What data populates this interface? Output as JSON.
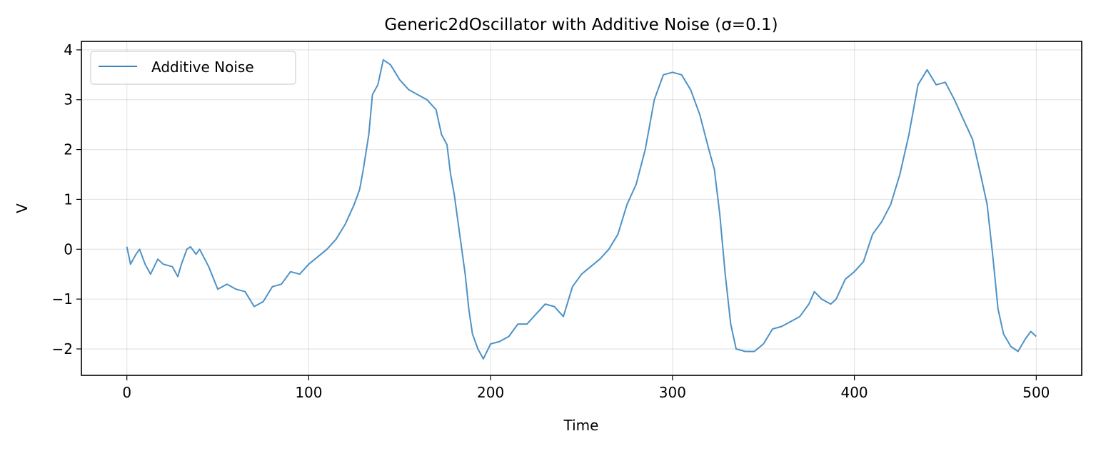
{
  "chart_data": {
    "type": "line",
    "title": "Generic2dOscillator with Additive Noise (σ=0.1)",
    "xlabel": "Time",
    "ylabel": "V",
    "xlim": [
      -25,
      525
    ],
    "ylim": [
      -2.53,
      4.17
    ],
    "xticks": [
      0,
      100,
      200,
      300,
      400,
      500
    ],
    "xtick_labels": [
      "0",
      "100",
      "200",
      "300",
      "400",
      "500"
    ],
    "yticks": [
      -2,
      -1,
      0,
      1,
      2,
      3,
      4
    ],
    "ytick_labels": [
      "−2",
      "−1",
      "0",
      "1",
      "2",
      "3",
      "4"
    ],
    "grid": true,
    "legend": {
      "placement": "top-left",
      "entries": [
        "Additive Noise"
      ]
    },
    "series": [
      {
        "name": "Additive Noise",
        "color": "#3a86c0",
        "x": [
          0,
          2,
          5,
          7,
          10,
          13,
          17,
          20,
          25,
          28,
          30,
          33,
          35,
          38,
          40,
          45,
          50,
          55,
          60,
          65,
          70,
          75,
          80,
          85,
          90,
          95,
          100,
          105,
          110,
          115,
          120,
          125,
          128,
          130,
          133,
          135,
          138,
          141,
          145,
          150,
          155,
          160,
          165,
          170,
          173,
          176,
          178,
          180,
          183,
          186,
          188,
          190,
          193,
          196,
          200,
          205,
          210,
          215,
          220,
          225,
          230,
          235,
          240,
          245,
          250,
          255,
          260,
          265,
          270,
          275,
          280,
          285,
          290,
          295,
          300,
          305,
          310,
          315,
          320,
          323,
          326,
          329,
          332,
          335,
          340,
          345,
          350,
          355,
          360,
          365,
          370,
          375,
          378,
          382,
          387,
          390,
          395,
          400,
          405,
          410,
          415,
          420,
          425,
          430,
          435,
          440,
          445,
          450,
          455,
          460,
          465,
          470,
          473,
          476,
          479,
          482,
          486,
          490,
          494,
          497,
          500
        ],
        "y": [
          0.05,
          -0.3,
          -0.1,
          0.0,
          -0.3,
          -0.5,
          -0.2,
          -0.3,
          -0.35,
          -0.55,
          -0.3,
          0.0,
          0.05,
          -0.1,
          0.0,
          -0.35,
          -0.8,
          -0.7,
          -0.8,
          -0.85,
          -1.15,
          -1.05,
          -0.75,
          -0.7,
          -0.45,
          -0.5,
          -0.3,
          -0.15,
          0.0,
          0.2,
          0.5,
          0.9,
          1.2,
          1.6,
          2.3,
          3.1,
          3.3,
          3.8,
          3.7,
          3.4,
          3.2,
          3.1,
          3.0,
          2.8,
          2.3,
          2.1,
          1.5,
          1.1,
          0.3,
          -0.5,
          -1.2,
          -1.7,
          -2.0,
          -2.2,
          -1.9,
          -1.85,
          -1.75,
          -1.5,
          -1.5,
          -1.3,
          -1.1,
          -1.15,
          -1.35,
          -0.75,
          -0.5,
          -0.35,
          -0.2,
          0.0,
          0.3,
          0.9,
          1.3,
          2.0,
          3.0,
          3.5,
          3.55,
          3.5,
          3.2,
          2.7,
          2.0,
          1.6,
          0.7,
          -0.5,
          -1.5,
          -2.0,
          -2.05,
          -2.05,
          -1.9,
          -1.6,
          -1.55,
          -1.45,
          -1.35,
          -1.1,
          -0.85,
          -1.0,
          -1.1,
          -1.0,
          -0.6,
          -0.45,
          -0.25,
          0.3,
          0.55,
          0.9,
          1.5,
          2.3,
          3.3,
          3.6,
          3.3,
          3.35,
          3.0,
          2.6,
          2.2,
          1.4,
          0.9,
          -0.1,
          -1.2,
          -1.7,
          -1.95,
          -2.05,
          -1.8,
          -1.65,
          -1.75
        ]
      }
    ]
  }
}
